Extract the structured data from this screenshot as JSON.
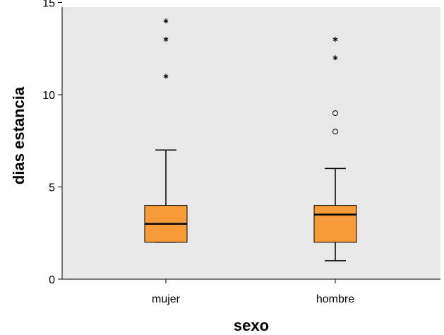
{
  "chart_data": {
    "type": "boxplot",
    "xlabel": "sexo",
    "ylabel": "dias estancia",
    "ylim": [
      0,
      14.5
    ],
    "yticks": [
      0,
      5,
      10,
      15
    ],
    "grid": false,
    "colors": {
      "plot_background": "#e8e8e8",
      "box_fill": "#f79a3a",
      "box_stroke": "#000000",
      "median": "#000000"
    },
    "categories": [
      "mujer",
      "hombre"
    ],
    "boxes": [
      {
        "category": "mujer",
        "whisker_low": 2,
        "q1": 2,
        "median": 3,
        "q3": 4,
        "whisker_high": 7,
        "outliers": [],
        "extremes": [
          11,
          13,
          14
        ]
      },
      {
        "category": "hombre",
        "whisker_low": 1,
        "q1": 2,
        "median": 3.5,
        "q3": 4,
        "whisker_high": 6,
        "outliers": [
          8,
          9
        ],
        "extremes": [
          12,
          13
        ]
      }
    ]
  }
}
